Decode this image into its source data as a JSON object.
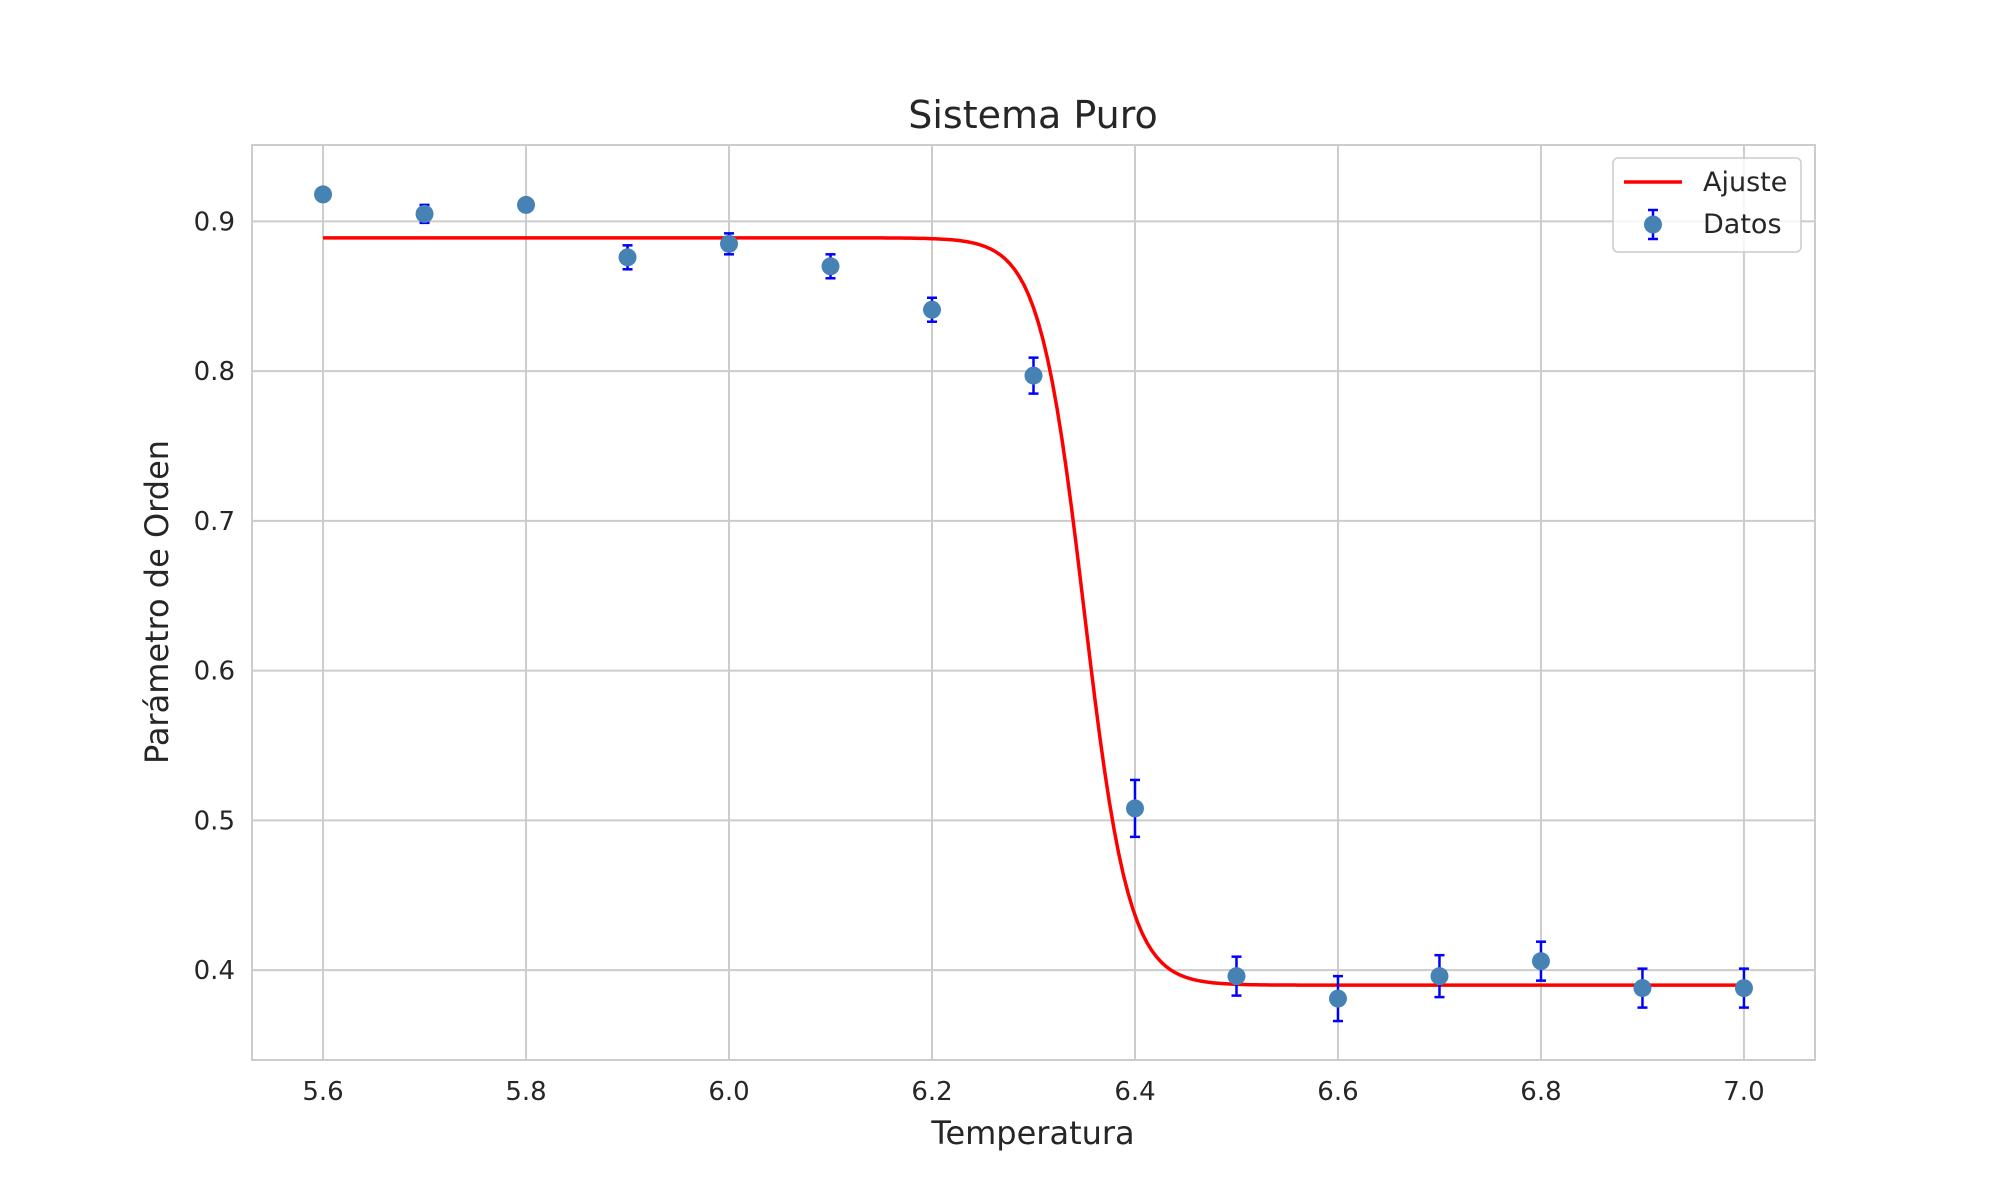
{
  "chart_data": {
    "type": "scatter",
    "title": "Sistema Puro",
    "xlabel": "Temperatura",
    "ylabel": "Parámetro de Orden",
    "xlim": [
      5.53,
      7.07
    ],
    "ylim": [
      0.34,
      0.951
    ],
    "xticks": [
      "5.6",
      "5.8",
      "6.0",
      "6.2",
      "6.4",
      "6.6",
      "6.8",
      "7.0"
    ],
    "yticks": [
      "0.4",
      "0.5",
      "0.6",
      "0.7",
      "0.8",
      "0.9"
    ],
    "grid": true,
    "legend_position": "top-right",
    "series": [
      {
        "name": "Ajuste",
        "kind": "line",
        "color": "#ff0000",
        "model": "sigmoid",
        "params": {
          "upper": 0.889,
          "lower": 0.39,
          "center": 6.35,
          "width": 0.022
        },
        "x_range": [
          5.6,
          7.0
        ]
      },
      {
        "name": "Datos",
        "kind": "errorbar",
        "color": "#4682b4",
        "ecolor": "#0000ff",
        "x": [
          5.6,
          5.7,
          5.8,
          5.9,
          6.0,
          6.1,
          6.2,
          6.3,
          6.4,
          6.5,
          6.6,
          6.7,
          6.8,
          6.9,
          7.0
        ],
        "y": [
          0.918,
          0.905,
          0.911,
          0.876,
          0.885,
          0.87,
          0.841,
          0.797,
          0.508,
          0.396,
          0.381,
          0.396,
          0.406,
          0.388,
          0.388
        ],
        "yerr": [
          0.004,
          0.006,
          0.003,
          0.008,
          0.007,
          0.008,
          0.008,
          0.012,
          0.019,
          0.013,
          0.015,
          0.014,
          0.013,
          0.013,
          0.013
        ]
      }
    ]
  }
}
